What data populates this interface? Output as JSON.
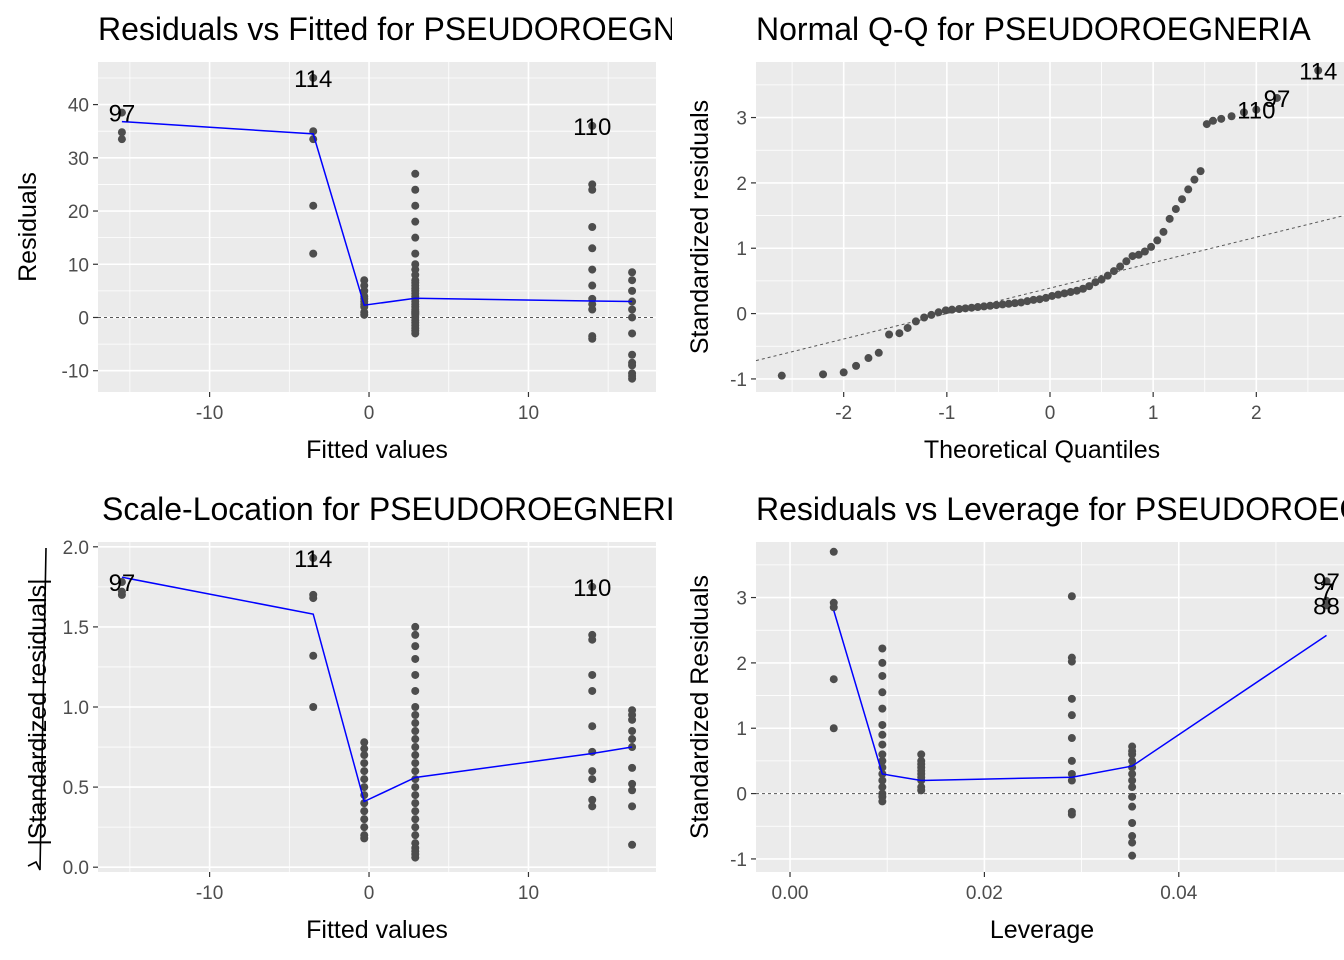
{
  "chart_data": [
    {
      "type": "scatter",
      "title": "Residuals vs Fitted for PSEUDOROEGNERIA",
      "xlabel": "Fitted values",
      "ylabel": "Residuals",
      "xlim": [
        -17,
        18
      ],
      "ylim": [
        -14,
        48
      ],
      "xticks": [
        -10,
        0,
        10
      ],
      "xtick_labels": [
        "-10",
        "0",
        "10"
      ],
      "yticks": [
        -10,
        0,
        10,
        20,
        30,
        40
      ],
      "ytick_labels": [
        "-10",
        "0",
        "10",
        "20",
        "30",
        "40"
      ],
      "grid": true,
      "hline": 0,
      "points": {
        "x": [
          -15.5,
          -15.5,
          -15.5,
          -3.5,
          -3.5,
          -3.5,
          -3.5,
          -3.5,
          -0.3,
          -0.3,
          -0.3,
          -0.3,
          -0.3,
          -0.3,
          -0.3,
          -0.3,
          -0.3,
          -0.3,
          2.9,
          2.9,
          2.9,
          2.9,
          2.9,
          2.9,
          2.9,
          2.9,
          2.9,
          2.9,
          2.9,
          2.9,
          2.9,
          2.9,
          2.9,
          2.9,
          2.9,
          2.9,
          2.9,
          2.9,
          2.9,
          2.9,
          2.9,
          2.9,
          2.9,
          2.9,
          2.9,
          2.9,
          2.9,
          2.9,
          2.9,
          2.9,
          14.0,
          14.0,
          14.0,
          14.0,
          14.0,
          14.0,
          14.0,
          14.0,
          14.0,
          14.0,
          14.0,
          14.0,
          16.5,
          16.5,
          16.5,
          16.5,
          16.5,
          16.5,
          16.5,
          16.5,
          16.5,
          16.5,
          16.5,
          16.5,
          16.5
        ],
        "y": [
          33.5,
          34.8,
          38.5,
          45.0,
          35.0,
          33.5,
          21.0,
          12.0,
          7.0,
          6.0,
          5.0,
          4.0,
          3.5,
          3.0,
          2.5,
          2.0,
          1.0,
          0.5,
          27.0,
          24.0,
          21.0,
          18.0,
          15.0,
          12.0,
          10.0,
          9.0,
          8.0,
          7.0,
          6.5,
          6.0,
          5.5,
          5.0,
          4.5,
          4.0,
          3.5,
          3.0,
          2.5,
          2.0,
          1.5,
          1.0,
          0.5,
          0.0,
          -0.5,
          -1.0,
          -1.5,
          -2.0,
          -2.5,
          -3.0,
          0.8,
          1.2,
          36.0,
          25.0,
          24.0,
          17.0,
          13.0,
          9.0,
          6.0,
          3.5,
          2.5,
          1.5,
          -3.5,
          -4.0,
          8.5,
          7.0,
          5.0,
          3.0,
          1.5,
          0.0,
          -3.0,
          -7.0,
          -8.5,
          -9.0,
          -10.5,
          -11.0,
          -11.5
        ]
      },
      "smooth": {
        "x": [
          -15.5,
          -3.5,
          -0.3,
          2.9,
          14.0,
          16.5
        ],
        "y": [
          36.8,
          34.5,
          2.3,
          3.6,
          3.1,
          3.0
        ]
      },
      "labels": [
        {
          "text": "97",
          "x": -15.5,
          "y": 38.5
        },
        {
          "text": "114",
          "x": -3.5,
          "y": 45.0
        },
        {
          "text": "110",
          "x": 14.0,
          "y": 36.0
        }
      ]
    },
    {
      "type": "scatter",
      "title": "Normal Q-Q for PSEUDOROEGNERIA",
      "xlabel": "Theoretical Quantiles",
      "ylabel": "Standardized residuals",
      "xlim": [
        -2.85,
        2.85
      ],
      "ylim": [
        -1.2,
        3.85
      ],
      "xticks": [
        -2,
        -1,
        0,
        1,
        2
      ],
      "xtick_labels": [
        "-2",
        "-1",
        "0",
        "1",
        "2"
      ],
      "yticks": [
        -1,
        0,
        1,
        2,
        3
      ],
      "ytick_labels": [
        "-1",
        "0",
        "1",
        "2",
        "3"
      ],
      "grid": true,
      "refline": {
        "x": [
          -2.85,
          2.85
        ],
        "y": [
          -0.72,
          1.5
        ]
      },
      "points": {
        "x": [
          -2.6,
          -2.2,
          -2.0,
          -1.88,
          -1.76,
          -1.66,
          -1.56,
          -1.46,
          -1.38,
          -1.3,
          -1.22,
          -1.15,
          -1.08,
          -1.01,
          -0.95,
          -0.88,
          -0.82,
          -0.76,
          -0.7,
          -0.64,
          -0.58,
          -0.52,
          -0.46,
          -0.4,
          -0.34,
          -0.28,
          -0.22,
          -0.16,
          -0.1,
          -0.04,
          0.02,
          0.08,
          0.14,
          0.2,
          0.26,
          0.32,
          0.38,
          0.44,
          0.5,
          0.56,
          0.62,
          0.68,
          0.74,
          0.8,
          0.86,
          0.92,
          0.98,
          1.04,
          1.1,
          1.16,
          1.22,
          1.28,
          1.34,
          1.4,
          1.46,
          1.52,
          1.58,
          1.66,
          1.76,
          1.88,
          2.0,
          2.2,
          2.6
        ],
        "y": [
          -0.95,
          -0.93,
          -0.9,
          -0.8,
          -0.68,
          -0.6,
          -0.32,
          -0.3,
          -0.22,
          -0.12,
          -0.06,
          -0.02,
          0.02,
          0.05,
          0.06,
          0.07,
          0.08,
          0.09,
          0.1,
          0.11,
          0.12,
          0.13,
          0.14,
          0.15,
          0.16,
          0.17,
          0.19,
          0.21,
          0.22,
          0.24,
          0.27,
          0.29,
          0.31,
          0.33,
          0.35,
          0.38,
          0.42,
          0.48,
          0.52,
          0.58,
          0.65,
          0.72,
          0.8,
          0.88,
          0.9,
          0.95,
          1.02,
          1.12,
          1.25,
          1.45,
          1.6,
          1.75,
          1.9,
          2.05,
          2.18,
          2.9,
          2.95,
          2.98,
          3.02,
          3.08,
          3.12,
          3.3,
          3.72
        ]
      },
      "labels": [
        {
          "text": "114",
          "x": 2.6,
          "y": 3.72
        },
        {
          "text": "97",
          "x": 2.2,
          "y": 3.3
        },
        {
          "text": "110",
          "x": 2.0,
          "y": 3.12
        }
      ]
    },
    {
      "type": "scatter",
      "title": "Scale-Location for PSEUDOROEGNERIA",
      "xlabel": "Fitted values",
      "ylabel": "√|Standardized residuals|",
      "ylabel_text": "|Standardized residuals|",
      "xlim": [
        -17,
        18
      ],
      "ylim": [
        -0.03,
        2.03
      ],
      "xticks": [
        -10,
        0,
        10
      ],
      "xtick_labels": [
        "-10",
        "0",
        "10"
      ],
      "yticks": [
        0.0,
        0.5,
        1.0,
        1.5,
        2.0
      ],
      "ytick_labels": [
        "0.0",
        "0.5",
        "1.0",
        "1.5",
        "2.0"
      ],
      "grid": true,
      "points": {
        "x": [
          -15.5,
          -15.5,
          -15.5,
          -3.5,
          -3.5,
          -3.5,
          -3.5,
          -3.5,
          -0.3,
          -0.3,
          -0.3,
          -0.3,
          -0.3,
          -0.3,
          -0.3,
          -0.3,
          -0.3,
          -0.3,
          -0.3,
          -0.3,
          -0.3,
          -0.3,
          2.9,
          2.9,
          2.9,
          2.9,
          2.9,
          2.9,
          2.9,
          2.9,
          2.9,
          2.9,
          2.9,
          2.9,
          2.9,
          2.9,
          2.9,
          2.9,
          2.9,
          2.9,
          2.9,
          2.9,
          2.9,
          2.9,
          2.9,
          2.9,
          2.9,
          2.9,
          2.9,
          2.9,
          14.0,
          14.0,
          14.0,
          14.0,
          14.0,
          14.0,
          14.0,
          14.0,
          14.0,
          14.0,
          14.0,
          16.5,
          16.5,
          16.5,
          16.5,
          16.5,
          16.5,
          16.5,
          16.5,
          16.5,
          16.5,
          16.5
        ],
        "y": [
          1.7,
          1.72,
          1.78,
          1.93,
          1.7,
          1.68,
          1.32,
          1.0,
          0.78,
          0.74,
          0.7,
          0.65,
          0.6,
          0.55,
          0.5,
          0.45,
          0.4,
          0.35,
          0.3,
          0.25,
          0.2,
          0.18,
          1.5,
          1.45,
          1.38,
          1.3,
          1.2,
          1.1,
          1.0,
          0.95,
          0.9,
          0.85,
          0.8,
          0.75,
          0.7,
          0.65,
          0.6,
          0.55,
          0.5,
          0.45,
          0.4,
          0.35,
          0.3,
          0.25,
          0.2,
          0.15,
          0.12,
          0.1,
          0.08,
          0.06,
          1.75,
          1.45,
          1.42,
          1.2,
          1.1,
          0.88,
          0.72,
          0.6,
          0.55,
          0.42,
          0.38,
          0.98,
          0.95,
          0.92,
          0.85,
          0.8,
          0.75,
          0.62,
          0.52,
          0.48,
          0.38,
          0.14
        ]
      },
      "smooth": {
        "x": [
          -15.5,
          -3.5,
          -0.3,
          2.9,
          14.0,
          16.5
        ],
        "y": [
          1.81,
          1.58,
          0.41,
          0.56,
          0.71,
          0.75
        ]
      },
      "labels": [
        {
          "text": "97",
          "x": -15.5,
          "y": 1.78
        },
        {
          "text": "114",
          "x": -3.5,
          "y": 1.93
        },
        {
          "text": "110",
          "x": 14.0,
          "y": 1.75
        }
      ]
    },
    {
      "type": "scatter",
      "title": "Residuals vs Leverage for PSEUDOROEGNERIA",
      "xlabel": "Leverage",
      "ylabel": "Standardized Residuals",
      "xlim": [
        -0.0035,
        0.057
      ],
      "ylim": [
        -1.2,
        3.85
      ],
      "xticks": [
        0.0,
        0.02,
        0.04
      ],
      "xtick_labels": [
        "0.00",
        "0.02",
        "0.04"
      ],
      "yticks": [
        -1,
        0,
        1,
        2,
        3
      ],
      "ytick_labels": [
        "-1",
        "0",
        "1",
        "2",
        "3"
      ],
      "grid": true,
      "hline": 0,
      "points": {
        "x": [
          0.0045,
          0.0045,
          0.0045,
          0.0045,
          0.0045,
          0.0095,
          0.0095,
          0.0095,
          0.0095,
          0.0095,
          0.0095,
          0.0095,
          0.0095,
          0.0095,
          0.0095,
          0.0095,
          0.0095,
          0.0095,
          0.0095,
          0.0095,
          0.0095,
          0.0095,
          0.0135,
          0.0135,
          0.0135,
          0.0135,
          0.0135,
          0.0135,
          0.0135,
          0.0135,
          0.0135,
          0.0135,
          0.029,
          0.029,
          0.029,
          0.029,
          0.029,
          0.029,
          0.029,
          0.029,
          0.029,
          0.029,
          0.029,
          0.0352,
          0.0352,
          0.0352,
          0.0352,
          0.0352,
          0.0352,
          0.0352,
          0.0352,
          0.0352,
          0.0352,
          0.0352,
          0.0352,
          0.0352,
          0.0352,
          0.0552,
          0.0552,
          0.0552
        ],
        "y": [
          3.7,
          2.92,
          2.85,
          1.75,
          1.0,
          2.22,
          2.0,
          1.8,
          1.55,
          1.3,
          1.05,
          0.9,
          0.75,
          0.6,
          0.5,
          0.4,
          0.3,
          0.2,
          0.1,
          0.0,
          -0.05,
          -0.12,
          0.6,
          0.5,
          0.45,
          0.4,
          0.35,
          0.3,
          0.25,
          0.2,
          0.1,
          0.05,
          3.02,
          2.08,
          2.02,
          1.45,
          1.2,
          0.85,
          0.5,
          0.3,
          0.2,
          -0.28,
          -0.32,
          0.72,
          0.65,
          0.6,
          0.5,
          0.4,
          0.3,
          0.2,
          0.1,
          -0.05,
          -0.2,
          -0.45,
          -0.65,
          -0.75,
          -0.95,
          3.25,
          2.95,
          2.88
        ]
      },
      "smooth": {
        "x": [
          0.0045,
          0.0095,
          0.0135,
          0.029,
          0.0352,
          0.0552
        ],
        "y": [
          2.8,
          0.3,
          0.2,
          0.25,
          0.42,
          2.42
        ]
      },
      "labels": [
        {
          "text": "97",
          "x": 0.0552,
          "y": 3.25
        },
        {
          "text": "7",
          "x": 0.0552,
          "y": 3.1
        },
        {
          "text": "88",
          "x": 0.0552,
          "y": 2.88
        }
      ]
    }
  ]
}
